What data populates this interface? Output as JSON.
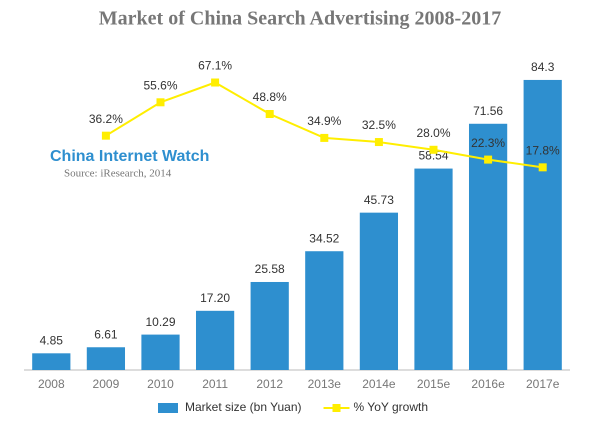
{
  "chart_data": {
    "type": "bar",
    "title": "Market of China Search Advertising 2008-2017",
    "watermark": "China Internet Watch",
    "source": "Source: iResearch, 2014",
    "categories": [
      "2008",
      "2009",
      "2010",
      "2011",
      "2012",
      "2013e",
      "2014e",
      "2015e",
      "2016e",
      "2017e"
    ],
    "series": [
      {
        "name": "Market size (bn Yuan)",
        "type": "bar",
        "color": "#2e8fcf",
        "values": [
          4.85,
          6.61,
          10.29,
          17.2,
          25.58,
          34.52,
          45.73,
          58.54,
          71.56,
          84.3
        ],
        "value_labels": [
          "4.85",
          "6.61",
          "10.29",
          "17.20",
          "25.58",
          "34.52",
          "45.73",
          "58.54",
          "71.56",
          "84.3"
        ]
      },
      {
        "name": "% YoY growth",
        "type": "line",
        "axis": "y2",
        "color": "#ffee00",
        "values": [
          null,
          36.2,
          55.6,
          67.1,
          48.8,
          34.9,
          32.5,
          28.0,
          22.3,
          17.8
        ],
        "value_labels": [
          null,
          "36.2%",
          "55.6%",
          "67.1%",
          "48.8%",
          "34.9%",
          "32.5%",
          "28.0%",
          "22.3%",
          "17.8%"
        ]
      }
    ],
    "ylim": [
      0,
      93
    ],
    "y2lim": [
      -100,
      86
    ],
    "legend": "bottom"
  }
}
